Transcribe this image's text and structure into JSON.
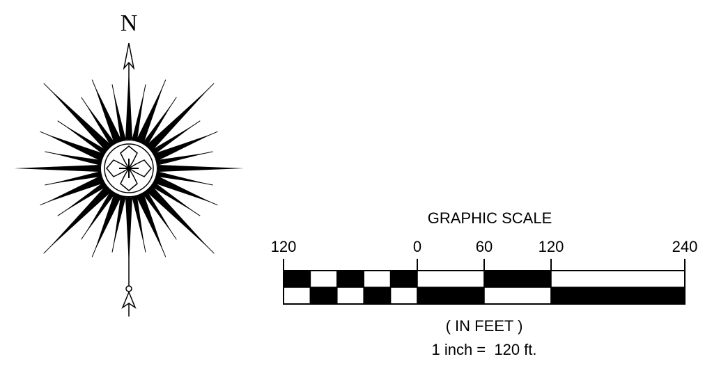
{
  "north_arrow": {
    "label": "N"
  },
  "scale": {
    "title": "GRAPHIC SCALE",
    "ticks": [
      "120",
      "0",
      "60",
      "120",
      "240"
    ],
    "units": "( IN FEET )",
    "ratio": "1 inch =  120 ft."
  }
}
